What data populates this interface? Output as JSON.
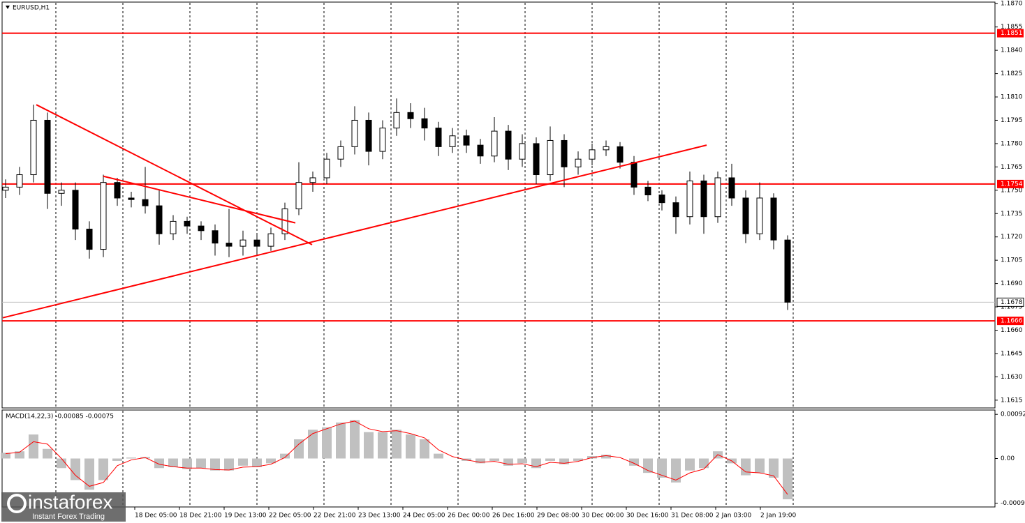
{
  "chart_data": [
    {
      "type": "candlestick",
      "title": "EURUSD,H1",
      "open": [
        1.175,
        1.1752,
        1.176,
        1.1795,
        1.1748,
        1.175,
        1.1725,
        1.1712,
        1.1755,
        1.1745,
        1.1744,
        1.174,
        1.1722,
        1.173,
        1.1727,
        1.1724,
        1.1716,
        1.1714,
        1.1718,
        1.1714,
        1.1722,
        1.1738,
        1.1755,
        1.1758,
        1.177,
        1.1778,
        1.1795,
        1.1775,
        1.179,
        1.18,
        1.1796,
        1.179,
        1.1778,
        1.1785,
        1.1779,
        1.1772,
        1.1788,
        1.177,
        1.178,
        1.176,
        1.1782,
        1.1765,
        1.177,
        1.1776,
        1.1778,
        1.1768,
        1.1752,
        1.1747,
        1.1742,
        1.1733,
        1.1756,
        1.1733,
        1.1758,
        1.1745,
        1.1722,
        1.1745,
        1.1718
      ],
      "high": [
        1.1757,
        1.1765,
        1.1805,
        1.18,
        1.1755,
        1.1755,
        1.173,
        1.176,
        1.1758,
        1.1749,
        1.1765,
        1.175,
        1.1734,
        1.1733,
        1.173,
        1.1728,
        1.1738,
        1.1724,
        1.1722,
        1.1726,
        1.1742,
        1.1768,
        1.1762,
        1.1774,
        1.1782,
        1.1804,
        1.18,
        1.1795,
        1.1809,
        1.1806,
        1.1803,
        1.1794,
        1.179,
        1.1789,
        1.1783,
        1.1797,
        1.1792,
        1.1786,
        1.1784,
        1.1791,
        1.1786,
        1.1775,
        1.178,
        1.1782,
        1.1781,
        1.1772,
        1.1756,
        1.175,
        1.1746,
        1.1762,
        1.176,
        1.1762,
        1.1767,
        1.175,
        1.1755,
        1.1748,
        1.1721
      ],
      "low": [
        1.1745,
        1.1747,
        1.1755,
        1.1738,
        1.174,
        1.1718,
        1.1706,
        1.1707,
        1.174,
        1.1739,
        1.1735,
        1.1715,
        1.1718,
        1.1722,
        1.1718,
        1.1708,
        1.1707,
        1.1708,
        1.1709,
        1.1711,
        1.1718,
        1.1734,
        1.1749,
        1.1754,
        1.1765,
        1.1773,
        1.1766,
        1.177,
        1.1785,
        1.179,
        1.1782,
        1.1772,
        1.1774,
        1.1774,
        1.1767,
        1.1768,
        1.1763,
        1.1765,
        1.1754,
        1.1756,
        1.1752,
        1.176,
        1.1766,
        1.1772,
        1.1764,
        1.1747,
        1.1743,
        1.1737,
        1.1722,
        1.1728,
        1.1722,
        1.1729,
        1.174,
        1.1716,
        1.1718,
        1.1712,
        1.1673
      ],
      "close": [
        1.1752,
        1.176,
        1.1795,
        1.1748,
        1.175,
        1.1725,
        1.1712,
        1.1755,
        1.1745,
        1.1744,
        1.174,
        1.1722,
        1.173,
        1.1727,
        1.1724,
        1.1716,
        1.1714,
        1.1718,
        1.1714,
        1.1722,
        1.1738,
        1.1755,
        1.1758,
        1.177,
        1.1778,
        1.1795,
        1.1775,
        1.179,
        1.18,
        1.1796,
        1.179,
        1.1778,
        1.1785,
        1.1779,
        1.1772,
        1.1788,
        1.177,
        1.178,
        1.176,
        1.1782,
        1.1765,
        1.177,
        1.1776,
        1.1778,
        1.1768,
        1.1752,
        1.1747,
        1.1742,
        1.1733,
        1.1756,
        1.1733,
        1.1758,
        1.1745,
        1.1722,
        1.1745,
        1.1718,
        1.1678
      ],
      "ylim": [
        1.161,
        1.1871
      ],
      "yticks": [
        {
          "value": 1.187,
          "label": "1.1870"
        },
        1.1855,
        {
          "value": 1.184,
          "label": "1.1840"
        },
        1.1825,
        {
          "value": 1.181,
          "label": "1.1810"
        },
        1.1795,
        {
          "value": 1.178,
          "label": "1.1780"
        },
        1.1765,
        {
          "value": 1.175,
          "label": "1.1750"
        },
        1.1735,
        {
          "value": 1.172,
          "label": "1.1720"
        },
        1.1705,
        {
          "value": 1.169,
          "label": "1.1690"
        },
        1.1675,
        {
          "value": 1.166,
          "label": "1.1660"
        },
        1.1645,
        {
          "value": 1.163,
          "label": "1.1630"
        },
        1.1615
      ],
      "levels": [
        {
          "value": 1.1851,
          "color": "#ff0000"
        },
        {
          "value": 1.1754,
          "color": "#ff0000"
        },
        {
          "value": 1.1666,
          "color": "#ff0000"
        }
      ],
      "current_price": 1.1678,
      "trendlines": [
        {
          "x": [
            -0.2,
            50.2
          ],
          "y": [
            1.1668,
            1.1779
          ],
          "color": "#ff0000"
        },
        {
          "x": [
            2.2,
            21.95
          ],
          "y": [
            1.1805,
            1.1715
          ],
          "color": "#ff0000"
        },
        {
          "x": [
            7,
            20.75
          ],
          "y": [
            1.1759,
            1.1729
          ],
          "color": "#ff0000"
        }
      ]
    },
    {
      "type": "macd",
      "title": "MACD(14,22,3) -0.00085 -0.00075",
      "ylim": [
        -0.00101,
        0.00101
      ],
      "yticks": [
        0.00092,
        {
          "value": 0,
          "label": "0.00"
        },
        -0.00093
      ],
      "series": [
        {
          "color": "#c0c0c0",
          "values": [
            0.00012,
            0.00015,
            0.0005,
            0.0002,
            -0.0002,
            -0.00045,
            -0.00065,
            -0.00045,
            -5e-05,
            2e-05,
            3e-05,
            -0.0002,
            -0.00018,
            -0.00022,
            -0.0002,
            -0.00025,
            -0.00025,
            -0.00015,
            -0.00018,
            -0.0001,
            0.0001,
            0.0004,
            0.0006,
            0.00065,
            0.00075,
            0.0008,
            0.00055,
            0.00055,
            0.0006,
            0.0005,
            0.0004,
            0.0001,
            0,
            -5e-05,
            -0.0001,
            -5e-05,
            -0.00015,
            -0.0001,
            -0.0002,
            -5e-05,
            -0.00012,
            -5e-05,
            5e-05,
            8e-05,
            0,
            -0.00015,
            -0.0003,
            -0.0004,
            -0.0005,
            -0.00025,
            -0.0002,
            0.00015,
            -0.0001,
            -0.00035,
            -0.0003,
            -0.0004,
            -0.00085
          ]
        },
        {
          "color": "#ff0000",
          "values": [
            0.0001,
            0.00013,
            0.00035,
            0.0003,
            0,
            -0.00035,
            -0.00058,
            -0.0005,
            -0.00015,
            -3e-05,
            2e-05,
            -0.00012,
            -0.00017,
            -0.0002,
            -0.0002,
            -0.00023,
            -0.00024,
            -0.00018,
            -0.00017,
            -0.00012,
            2e-05,
            0.0003,
            0.00052,
            0.00062,
            0.00072,
            0.00078,
            0.00062,
            0.00056,
            0.00058,
            0.00052,
            0.00043,
            0.00018,
            4e-05,
            -3e-05,
            -8e-05,
            -6e-05,
            -0.00012,
            -0.00011,
            -0.00017,
            -8e-05,
            -0.0001,
            -6e-05,
            2e-05,
            6e-05,
            2e-05,
            -0.0001,
            -0.00025,
            -0.00035,
            -0.00045,
            -0.0003,
            -0.00022,
            8e-05,
            -5e-05,
            -0.00028,
            -0.0003,
            -0.00036,
            -0.00075
          ]
        }
      ],
      "time_labels": [
        "18 Dec 05:00",
        "18 Dec 21:00",
        "19 Dec 13:00",
        "22 Dec 05:00",
        "22 Dec 21:00",
        "23 Dec 13:00",
        "24 Dec 05:00",
        "26 Dec 00:00",
        "26 Dec 16:00",
        "29 Dec 08:00",
        "30 Dec 00:00",
        "30 Dec 16:00",
        "31 Dec 08:00",
        "2 Jan 03:00",
        "2 Jan 19:00"
      ]
    }
  ],
  "branding": {
    "name": "instaforex",
    "tagline": "Instant Forex Trading"
  }
}
